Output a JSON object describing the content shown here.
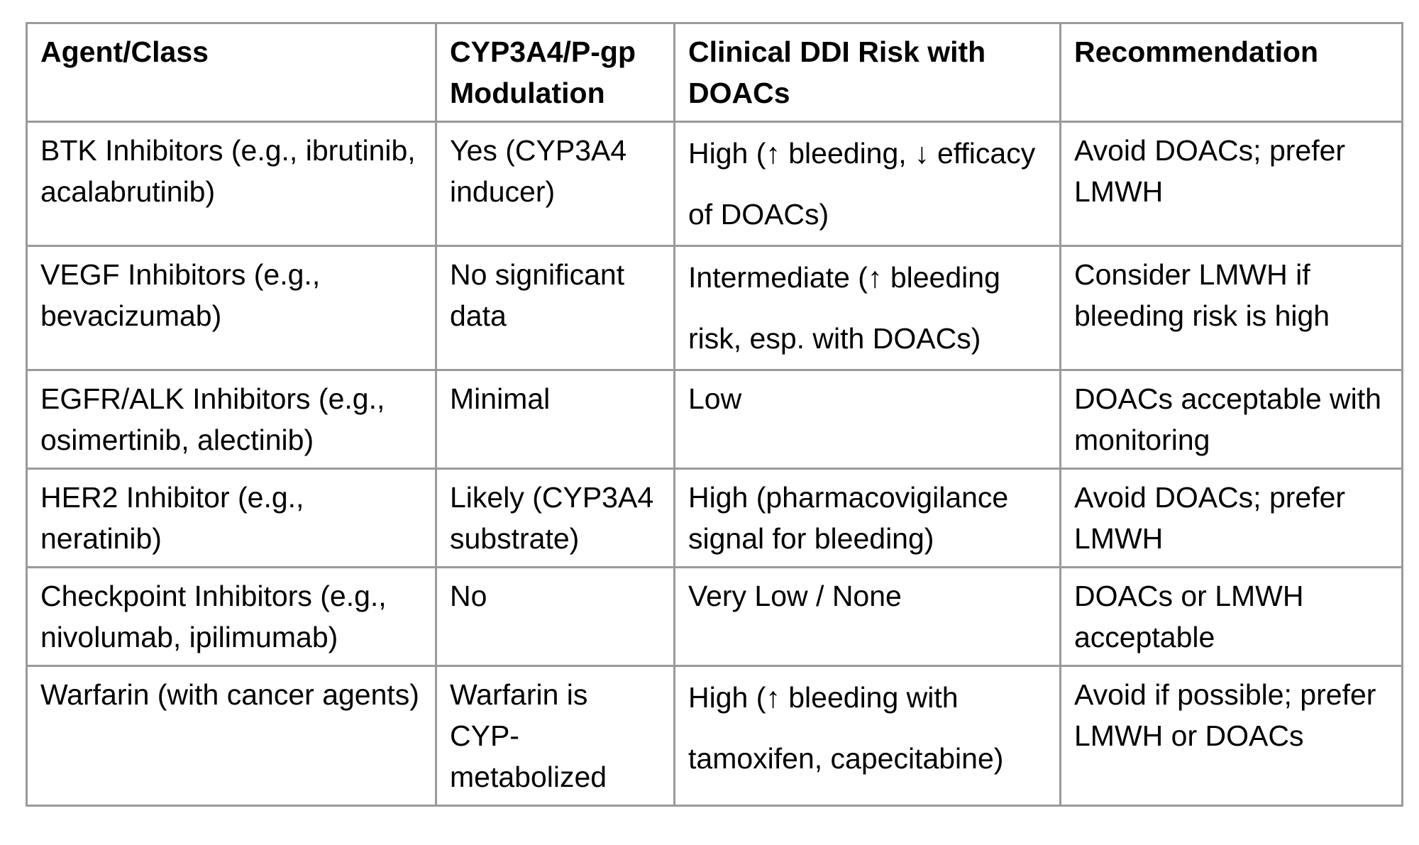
{
  "table": {
    "headers": [
      "Agent/Class",
      "CYP3A4/P-gp Modulation",
      "Clinical DDI Risk with DOACs",
      "Recommendation"
    ],
    "rows": [
      {
        "agent": "BTK Inhibitors (e.g., ibrutinib, acalabrutinib)",
        "modulation": "Yes (CYP3A4 inducer)",
        "risk": "High (↑ bleeding, ↓ efficacy of DOACs)",
        "recommendation": "Avoid DOACs; prefer LMWH"
      },
      {
        "agent": "VEGF Inhibitors (e.g., bevacizumab)",
        "modulation": "No significant data",
        "risk": "Intermediate (↑ bleeding risk, esp. with DOACs)",
        "recommendation": "Consider LMWH if bleeding risk is high"
      },
      {
        "agent": "EGFR/ALK Inhibitors (e.g., osimertinib, alectinib)",
        "modulation": "Minimal",
        "risk": "Low",
        "recommendation": "DOACs acceptable with monitoring"
      },
      {
        "agent": "HER2 Inhibitor (e.g., neratinib)",
        "modulation": "Likely (CYP3A4 substrate)",
        "risk": "High (pharmacovigilance signal for bleeding)",
        "recommendation": "Avoid DOACs; prefer LMWH"
      },
      {
        "agent": "Checkpoint Inhibitors (e.g., nivolumab, ipilimumab)",
        "modulation": "No",
        "risk": "Very Low / None",
        "recommendation": "DOACs or LMWH acceptable"
      },
      {
        "agent": "Warfarin (with cancer agents)",
        "modulation": "Warfarin is CYP-metabolized",
        "risk": "High (↑ bleeding with tamoxifen, capecitabine)",
        "recommendation": "Avoid if possible; prefer LMWH or DOACs"
      }
    ]
  }
}
